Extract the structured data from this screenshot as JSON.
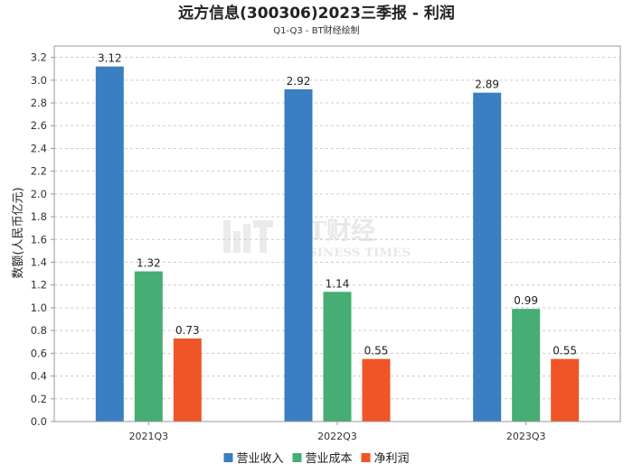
{
  "chart_data": {
    "type": "bar",
    "title": "远方信息(300306)2023三季报 - 利润",
    "subtitle": "Q1-Q3 - BT财经绘制",
    "ylabel": "数额(人民币亿元)",
    "xlabel": "",
    "categories": [
      "2021Q3",
      "2022Q3",
      "2023Q3"
    ],
    "series": [
      {
        "name": "营业收入",
        "color": "#3a7fc1",
        "values": [
          3.12,
          2.92,
          2.89
        ]
      },
      {
        "name": "营业成本",
        "color": "#46ad74",
        "values": [
          1.32,
          1.14,
          0.99
        ]
      },
      {
        "name": "净利润",
        "color": "#ef5526",
        "values": [
          0.73,
          0.55,
          0.55
        ]
      }
    ],
    "ylim": [
      0,
      3.3
    ],
    "yticks": [
      "0.0",
      "0.2",
      "0.4",
      "0.6",
      "0.8",
      "1.0",
      "1.2",
      "1.4",
      "1.6",
      "1.8",
      "2.0",
      "2.2",
      "2.4",
      "2.6",
      "2.8",
      "3.0",
      "3.2"
    ],
    "grid": true,
    "legend_position": "bottom-center",
    "watermark": {
      "main": "BT财经",
      "sub": "BUSINESS TIMES"
    }
  }
}
